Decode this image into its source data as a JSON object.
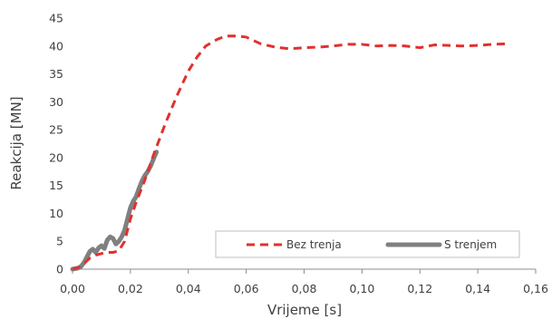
{
  "chart_data": {
    "type": "line",
    "title": "",
    "xlabel": "Vrijeme [s]",
    "ylabel": "Reakcija [MN]",
    "xlim": [
      0,
      0.16
    ],
    "ylim": [
      0,
      45
    ],
    "x_ticks": [
      0,
      0.02,
      0.04,
      0.06,
      0.08,
      0.1,
      0.12,
      0.14,
      0.16
    ],
    "x_tick_labels": [
      "0,00",
      "0,02",
      "0,04",
      "0,06",
      "0,08",
      "0,10",
      "0,12",
      "0,14",
      "0,16"
    ],
    "y_ticks": [
      0,
      5,
      10,
      15,
      20,
      25,
      30,
      35,
      40,
      45
    ],
    "y_tick_labels": [
      "0",
      "5",
      "10",
      "15",
      "20",
      "25",
      "30",
      "35",
      "40",
      "45"
    ],
    "grid": false,
    "legend_position": "bottom-right",
    "series": [
      {
        "name": "Bez trenja",
        "color": "#e0312f",
        "style": "dashed",
        "points": [
          [
            0,
            0
          ],
          [
            0.002,
            0.3
          ],
          [
            0.004,
            1.0
          ],
          [
            0.006,
            2.0
          ],
          [
            0.008,
            2.5
          ],
          [
            0.01,
            2.8
          ],
          [
            0.012,
            3.0
          ],
          [
            0.014,
            3.0
          ],
          [
            0.016,
            3.3
          ],
          [
            0.018,
            5.0
          ],
          [
            0.02,
            9.0
          ],
          [
            0.022,
            12.0
          ],
          [
            0.025,
            16.0
          ],
          [
            0.028,
            20.5
          ],
          [
            0.032,
            26.0
          ],
          [
            0.036,
            31.0
          ],
          [
            0.04,
            35.5
          ],
          [
            0.043,
            38.0
          ],
          [
            0.046,
            40.0
          ],
          [
            0.05,
            41.2
          ],
          [
            0.053,
            41.8
          ],
          [
            0.057,
            41.8
          ],
          [
            0.06,
            41.6
          ],
          [
            0.065,
            40.4
          ],
          [
            0.07,
            39.8
          ],
          [
            0.075,
            39.5
          ],
          [
            0.08,
            39.7
          ],
          [
            0.085,
            39.8
          ],
          [
            0.09,
            40.0
          ],
          [
            0.095,
            40.3
          ],
          [
            0.1,
            40.3
          ],
          [
            0.105,
            40.0
          ],
          [
            0.11,
            40.1
          ],
          [
            0.115,
            40.0
          ],
          [
            0.12,
            39.7
          ],
          [
            0.125,
            40.2
          ],
          [
            0.13,
            40.1
          ],
          [
            0.135,
            40.0
          ],
          [
            0.14,
            40.1
          ],
          [
            0.145,
            40.3
          ],
          [
            0.15,
            40.4
          ]
        ]
      },
      {
        "name": "S trenjem",
        "color": "#808080",
        "style": "solid",
        "points": [
          [
            0,
            0
          ],
          [
            0.002,
            0.2
          ],
          [
            0.003,
            0.5
          ],
          [
            0.004,
            1.2
          ],
          [
            0.005,
            2.2
          ],
          [
            0.006,
            3.2
          ],
          [
            0.007,
            3.6
          ],
          [
            0.008,
            3.0
          ],
          [
            0.009,
            3.8
          ],
          [
            0.01,
            4.2
          ],
          [
            0.011,
            3.7
          ],
          [
            0.012,
            5.2
          ],
          [
            0.013,
            5.8
          ],
          [
            0.014,
            5.5
          ],
          [
            0.015,
            4.5
          ],
          [
            0.016,
            5.0
          ],
          [
            0.017,
            5.8
          ],
          [
            0.018,
            7.0
          ],
          [
            0.019,
            9.0
          ],
          [
            0.02,
            11.0
          ],
          [
            0.021,
            12.2
          ],
          [
            0.022,
            13.0
          ],
          [
            0.023,
            14.5
          ],
          [
            0.024,
            15.8
          ],
          [
            0.025,
            16.8
          ],
          [
            0.026,
            17.5
          ],
          [
            0.027,
            18.5
          ],
          [
            0.028,
            19.8
          ],
          [
            0.029,
            21.0
          ]
        ]
      }
    ]
  }
}
